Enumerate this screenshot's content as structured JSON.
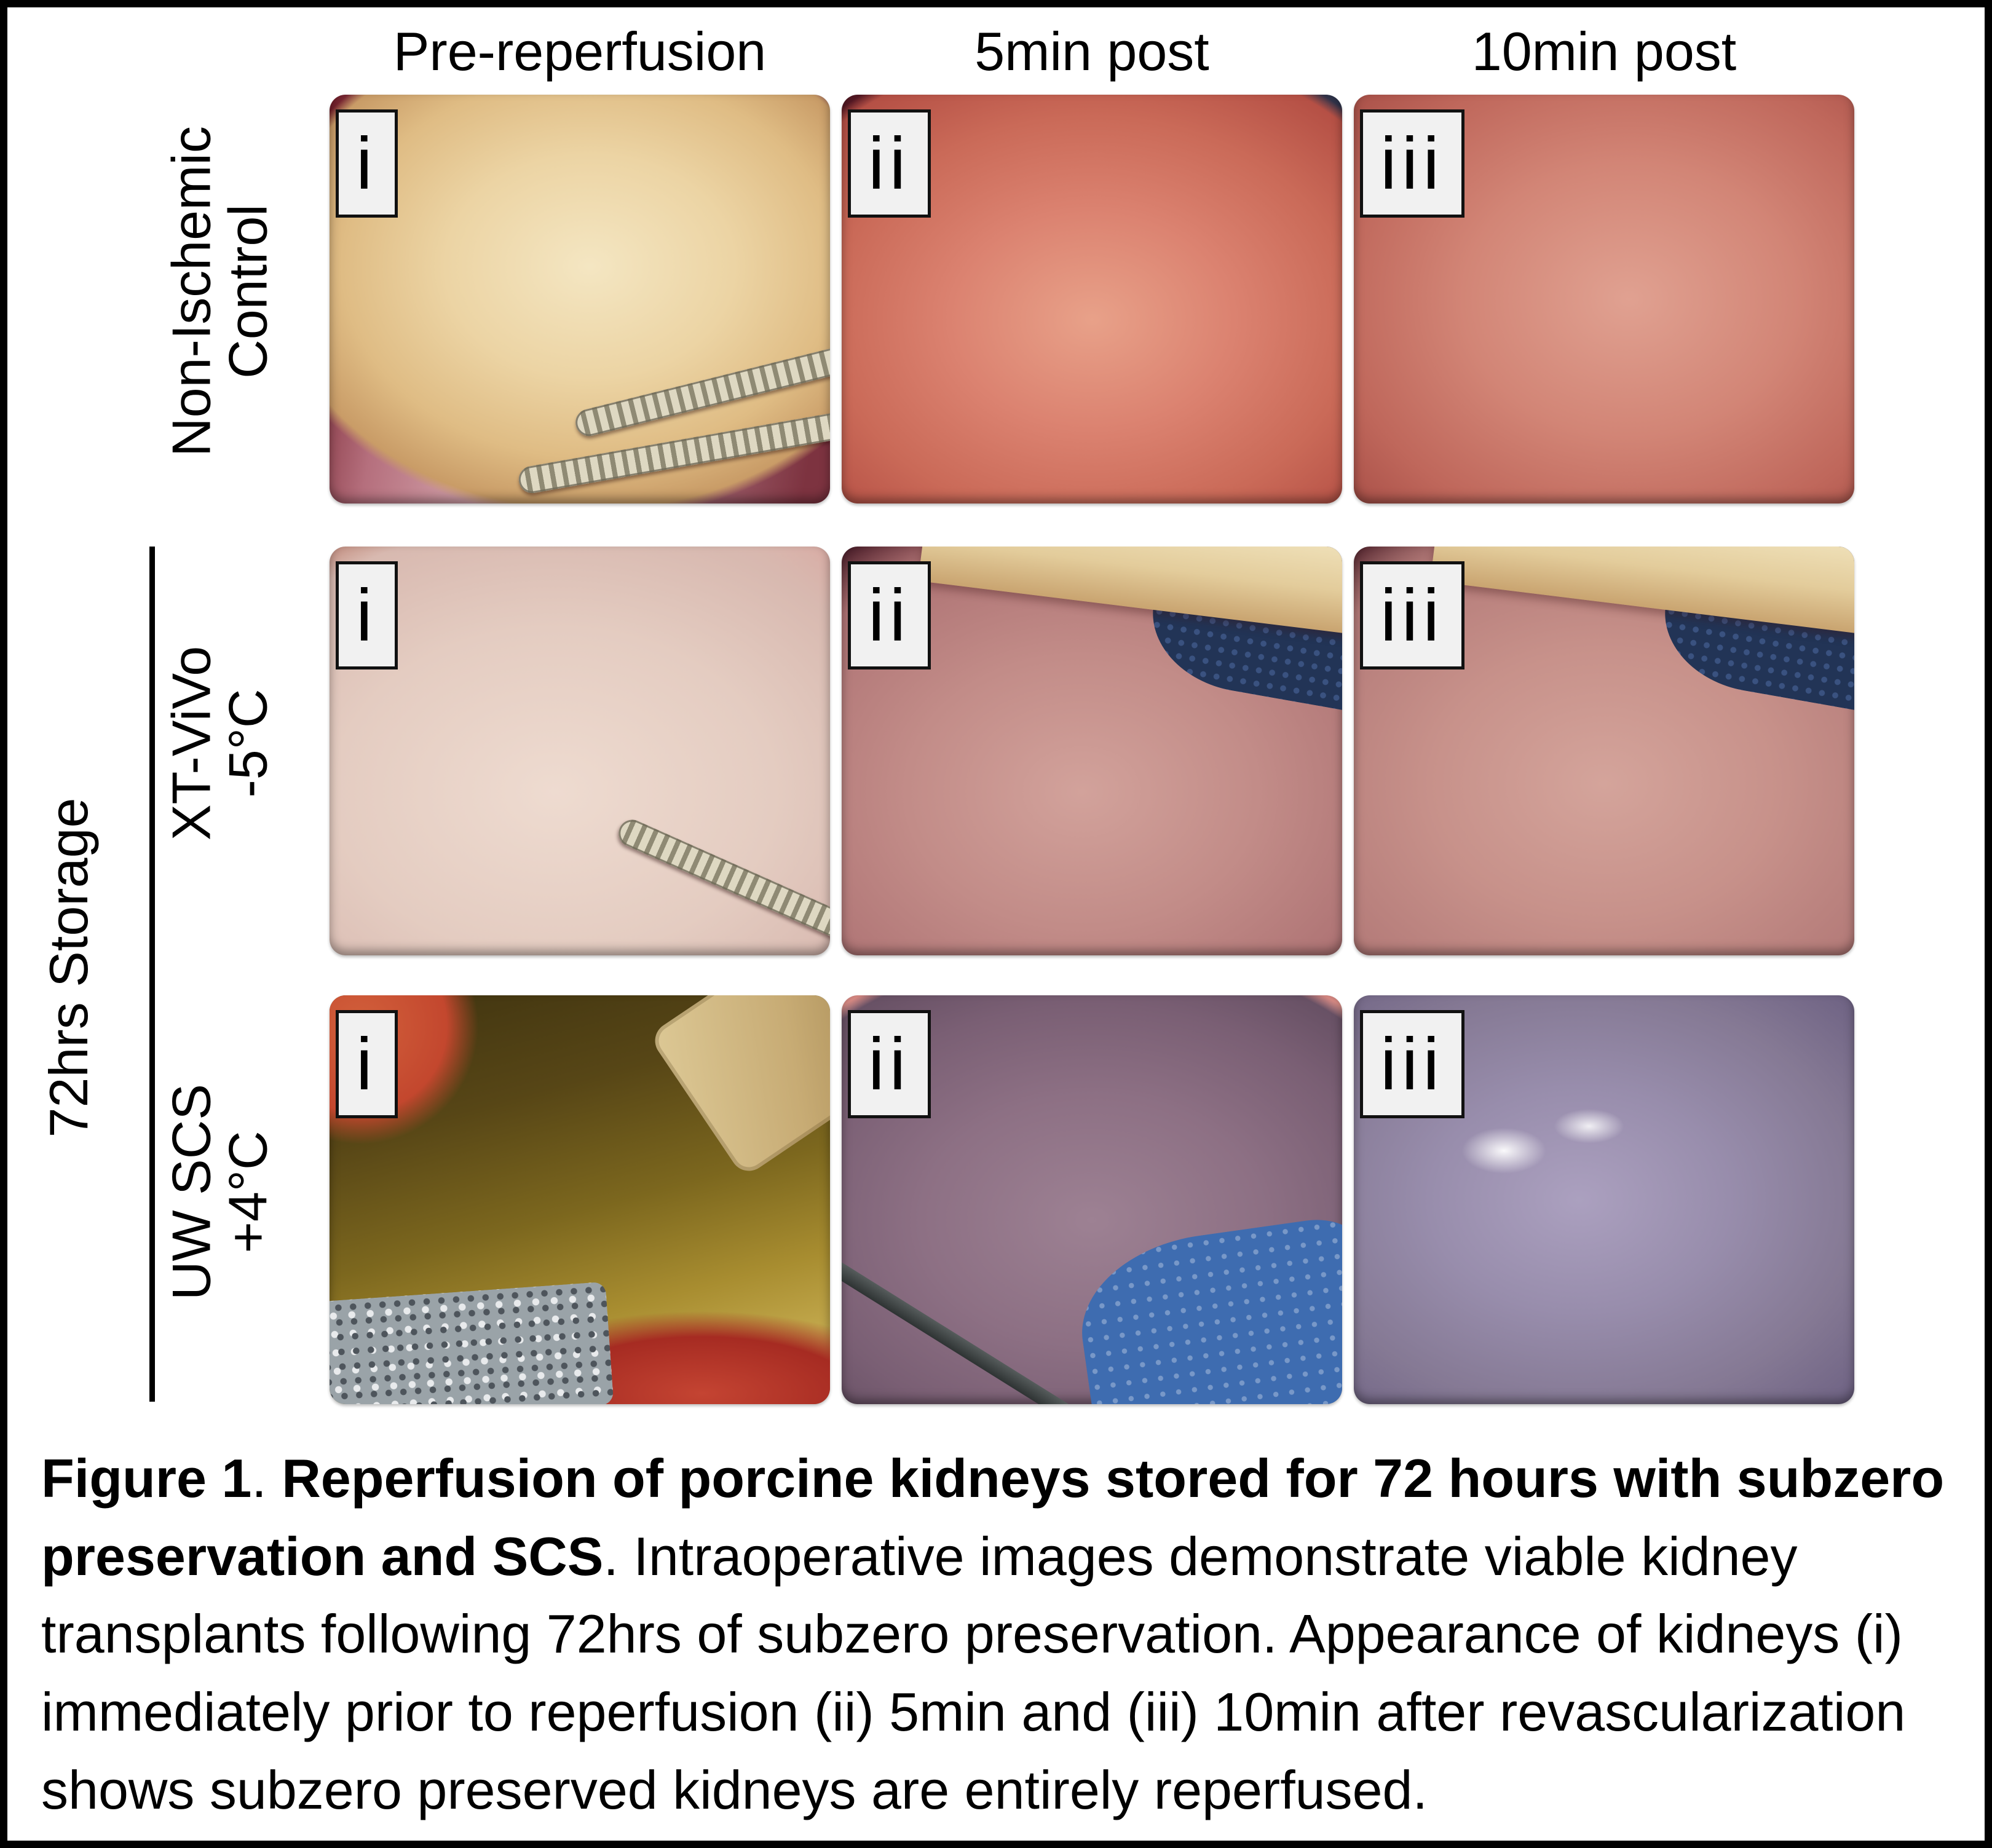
{
  "figure": {
    "columns": [
      "Pre-reperfusion",
      "5min post",
      "10min post"
    ],
    "rows": [
      {
        "label_line1": "Non-Ischemic",
        "label_line2": "Control",
        "panels": [
          "i",
          "ii",
          "iii"
        ]
      },
      {
        "label_line1": "XT-ViVo",
        "label_line2": "-5°C",
        "panels": [
          "i",
          "ii",
          "iii"
        ]
      },
      {
        "label_line1": "UW SCS",
        "label_line2": "+4°C",
        "panels": [
          "i",
          "ii",
          "iii"
        ]
      }
    ],
    "group_label": "72hrs Storage",
    "caption": {
      "bold1": "Figure 1",
      "sep1": ". ",
      "bold2": "Reperfusion of porcine kidneys stored for 72 hours with subzero preservation and SCS",
      "rest": ".  Intraoperative images demonstrate viable kidney transplants following 72hrs of subzero preservation. Appearance of kidneys (i) immediately prior to reperfusion (ii) 5min and (iii) 10min after revascularization shows subzero preserved kidneys are entirely reperfused."
    },
    "palette": {
      "frame_border": "#000000",
      "panel_tag_background": "#f1f1f1",
      "panel_tag_border": "#111111",
      "control_pre_kidney": "#ecd4a4",
      "control_5min_kidney": "#db8270",
      "control_10min_kidney": "#d28576",
      "xtvivo_pre_kidney": "#e4ccc1",
      "xtvivo_5min_kidney": "#c28c88",
      "xtvivo_10min_kidney": "#c7918a",
      "uwscs_pre_kidney": "#8a7222",
      "uwscs_5min_kidney": "#8d7084",
      "uwscs_10min_kidney": "#988dac",
      "towel_blue": "#3e6cb0",
      "drape_navy": "#223456",
      "clamp_silver": "#ded8c2"
    }
  }
}
